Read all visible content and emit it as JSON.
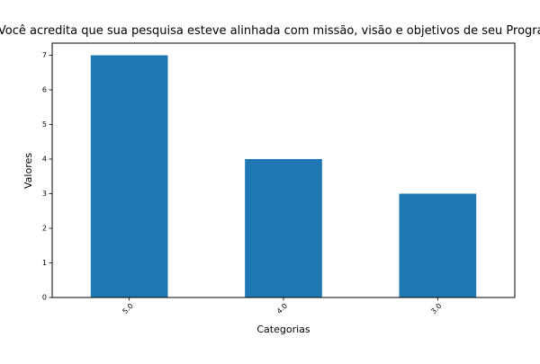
{
  "chart_data": {
    "type": "bar",
    "title": "Você acredita que sua pesquisa esteve alinhada com missão, visão e objetivos de seu Programa?",
    "xlabel": "Categorias",
    "ylabel": "Valores",
    "categories": [
      "5.0",
      "4.0",
      "3.0"
    ],
    "values": [
      7,
      4,
      3
    ],
    "ylim": [
      0,
      7.35
    ],
    "yticks": [
      0,
      1,
      2,
      3,
      4,
      5,
      6,
      7
    ],
    "grid": false,
    "legend": "none",
    "bar_color": "#1f77b4"
  }
}
